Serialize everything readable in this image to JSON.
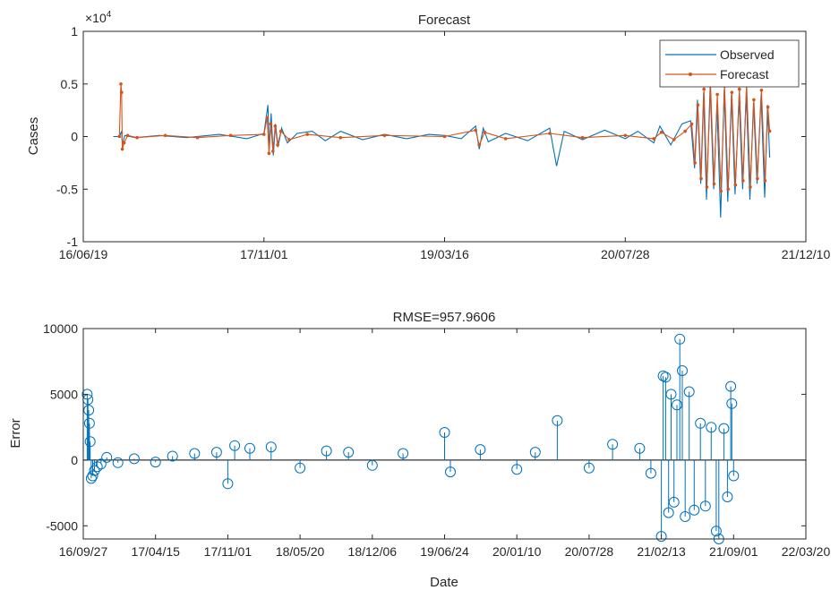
{
  "chart_data": [
    {
      "type": "line",
      "title": "Forecast",
      "xlabel": "",
      "ylabel": "Cases",
      "y_exponent_label": "×10",
      "y_exponent": "4",
      "xlim": [
        "2016-06-19",
        "2021-12-10"
      ],
      "ylim": [
        -1,
        1
      ],
      "xticks": [
        "16/06/19",
        "17/11/01",
        "19/03/16",
        "20/07/28",
        "21/12/10"
      ],
      "yticks": [
        "-1",
        "-0.5",
        "0",
        "0.5",
        "1"
      ],
      "grid": false,
      "legend_position": "top-right",
      "series": [
        {
          "name": "Observed",
          "color": "#0072BD",
          "style": "line",
          "points": [
            [
              "2016-09-10",
              0
            ],
            [
              "2016-09-27",
              0
            ],
            [
              "2016-10-03",
              0.05
            ],
            [
              "2016-10-05",
              -0.08
            ],
            [
              "2016-10-12",
              0.01
            ],
            [
              "2016-11-10",
              -0.01
            ],
            [
              "2017-01-15",
              0.01
            ],
            [
              "2017-04-01",
              -0.01
            ],
            [
              "2017-07-01",
              0.02
            ],
            [
              "2017-09-15",
              -0.02
            ],
            [
              "2017-11-01",
              0.03
            ],
            [
              "2017-11-12",
              0.3
            ],
            [
              "2017-11-16",
              -0.12
            ],
            [
              "2017-11-21",
              0.22
            ],
            [
              "2017-11-27",
              -0.18
            ],
            [
              "2017-12-03",
              0.12
            ],
            [
              "2017-12-10",
              -0.1
            ],
            [
              "2017-12-20",
              0.08
            ],
            [
              "2018-01-05",
              -0.06
            ],
            [
              "2018-02-01",
              0.03
            ],
            [
              "2018-03-15",
              0.05
            ],
            [
              "2018-04-20",
              -0.04
            ],
            [
              "2018-06-01",
              0.05
            ],
            [
              "2018-08-01",
              -0.03
            ],
            [
              "2018-10-01",
              0.02
            ],
            [
              "2018-12-01",
              -0.02
            ],
            [
              "2019-02-01",
              0.02
            ],
            [
              "2019-03-16",
              0.01
            ],
            [
              "2019-05-01",
              -0.02
            ],
            [
              "2019-06-10",
              0.1
            ],
            [
              "2019-06-20",
              -0.12
            ],
            [
              "2019-07-01",
              0.08
            ],
            [
              "2019-07-15",
              -0.05
            ],
            [
              "2019-09-01",
              0.03
            ],
            [
              "2019-11-01",
              -0.04
            ],
            [
              "2020-01-01",
              0.08
            ],
            [
              "2020-01-20",
              -0.28
            ],
            [
              "2020-02-10",
              0.05
            ],
            [
              "2020-04-01",
              -0.03
            ],
            [
              "2020-06-01",
              0.06
            ],
            [
              "2020-07-28",
              -0.02
            ],
            [
              "2020-09-01",
              0.05
            ],
            [
              "2020-10-15",
              -0.06
            ],
            [
              "2020-11-01",
              0.1
            ],
            [
              "2020-12-01",
              -0.08
            ],
            [
              "2021-01-01",
              0.12
            ],
            [
              "2021-01-25",
              0.15
            ],
            [
              "2021-02-05",
              -0.3
            ],
            [
              "2021-02-13",
              0.35
            ],
            [
              "2021-02-22",
              -0.45
            ],
            [
              "2021-03-02",
              0.42
            ],
            [
              "2021-03-10",
              -0.6
            ],
            [
              "2021-03-20",
              0.48
            ],
            [
              "2021-03-30",
              -0.5
            ],
            [
              "2021-04-08",
              0.3
            ],
            [
              "2021-04-18",
              -0.77
            ],
            [
              "2021-04-28",
              0.45
            ],
            [
              "2021-05-08",
              -0.62
            ],
            [
              "2021-05-18",
              0.4
            ],
            [
              "2021-05-28",
              -0.55
            ],
            [
              "2021-06-08",
              0.38
            ],
            [
              "2021-06-18",
              -0.5
            ],
            [
              "2021-06-28",
              0.42
            ],
            [
              "2021-07-08",
              -0.6
            ],
            [
              "2021-07-18",
              0.32
            ],
            [
              "2021-07-28",
              -0.45
            ],
            [
              "2021-08-08",
              0.4
            ],
            [
              "2021-08-18",
              -0.58
            ],
            [
              "2021-08-26",
              0.3
            ],
            [
              "2021-09-01",
              -0.2
            ]
          ]
        },
        {
          "name": "Forecast",
          "color": "#D95319",
          "style": "line-dot",
          "points": [
            [
              "2016-09-27",
              0
            ],
            [
              "2016-10-01",
              0.5
            ],
            [
              "2016-10-03",
              0.42
            ],
            [
              "2016-10-05",
              -0.12
            ],
            [
              "2016-10-10",
              -0.06
            ],
            [
              "2016-10-20",
              0.01
            ],
            [
              "2016-11-15",
              -0.01
            ],
            [
              "2017-02-01",
              0.01
            ],
            [
              "2017-05-01",
              -0.01
            ],
            [
              "2017-08-01",
              0.01
            ],
            [
              "2017-11-01",
              0.02
            ],
            [
              "2017-11-10",
              0.18
            ],
            [
              "2017-11-15",
              -0.16
            ],
            [
              "2017-11-20",
              0.12
            ],
            [
              "2017-11-26",
              -0.14
            ],
            [
              "2017-12-02",
              0.1
            ],
            [
              "2017-12-09",
              -0.08
            ],
            [
              "2017-12-18",
              0.05
            ],
            [
              "2018-01-10",
              -0.03
            ],
            [
              "2018-03-01",
              0.02
            ],
            [
              "2018-06-01",
              -0.01
            ],
            [
              "2018-10-01",
              0.01
            ],
            [
              "2019-03-16",
              0
            ],
            [
              "2019-06-10",
              0.06
            ],
            [
              "2019-06-20",
              -0.08
            ],
            [
              "2019-07-05",
              0.04
            ],
            [
              "2019-09-01",
              -0.02
            ],
            [
              "2020-01-01",
              0.03
            ],
            [
              "2020-04-01",
              -0.01
            ],
            [
              "2020-07-28",
              0.01
            ],
            [
              "2020-10-15",
              -0.02
            ],
            [
              "2020-11-05",
              0.04
            ],
            [
              "2020-12-10",
              -0.03
            ],
            [
              "2021-01-10",
              0.05
            ],
            [
              "2021-01-28",
              0.12
            ],
            [
              "2021-02-06",
              -0.25
            ],
            [
              "2021-02-14",
              0.3
            ],
            [
              "2021-02-23",
              -0.4
            ],
            [
              "2021-03-03",
              0.45
            ],
            [
              "2021-03-11",
              -0.48
            ],
            [
              "2021-03-21",
              0.5
            ],
            [
              "2021-03-31",
              -0.45
            ],
            [
              "2021-04-09",
              0.4
            ],
            [
              "2021-04-19",
              -0.52
            ],
            [
              "2021-04-29",
              0.48
            ],
            [
              "2021-05-09",
              -0.5
            ],
            [
              "2021-05-19",
              0.42
            ],
            [
              "2021-05-29",
              -0.46
            ],
            [
              "2021-06-09",
              0.45
            ],
            [
              "2021-06-19",
              -0.42
            ],
            [
              "2021-06-29",
              0.5
            ],
            [
              "2021-07-09",
              -0.48
            ],
            [
              "2021-07-19",
              0.35
            ],
            [
              "2021-07-29",
              -0.4
            ],
            [
              "2021-08-09",
              0.44
            ],
            [
              "2021-08-19",
              -0.42
            ],
            [
              "2021-08-27",
              0.28
            ],
            [
              "2021-09-01",
              0.05
            ]
          ]
        }
      ]
    },
    {
      "type": "scatter",
      "title": "RMSE=957.9606",
      "xlabel": "Date",
      "ylabel": "Error",
      "xlim": [
        "2016-09-27",
        "2022-03-20"
      ],
      "ylim": [
        -6000,
        10000
      ],
      "xticks": [
        "16/09/27",
        "17/04/15",
        "17/11/01",
        "18/05/20",
        "18/12/06",
        "19/06/24",
        "20/01/10",
        "20/07/28",
        "21/02/13",
        "21/09/01",
        "22/03/20"
      ],
      "yticks": [
        "-5000",
        "0",
        "5000",
        "10000"
      ],
      "grid": false,
      "zero_line": true,
      "series": [
        {
          "name": "",
          "color": "#0072BD",
          "style": "stem-circle",
          "points": [
            [
              "2016-10-08",
              5000
            ],
            [
              "2016-10-10",
              4600
            ],
            [
              "2016-10-12",
              3800
            ],
            [
              "2016-10-14",
              2800
            ],
            [
              "2016-10-16",
              1400
            ],
            [
              "2016-10-19",
              -1400
            ],
            [
              "2016-10-23",
              -1200
            ],
            [
              "2016-10-28",
              -800
            ],
            [
              "2016-11-05",
              -500
            ],
            [
              "2016-11-15",
              -300
            ],
            [
              "2016-12-01",
              200
            ],
            [
              "2017-01-01",
              -200
            ],
            [
              "2017-02-15",
              100
            ],
            [
              "2017-04-15",
              -150
            ],
            [
              "2017-06-01",
              300
            ],
            [
              "2017-08-01",
              500
            ],
            [
              "2017-10-01",
              600
            ],
            [
              "2017-11-01",
              -1800
            ],
            [
              "2017-11-20",
              1100
            ],
            [
              "2018-01-01",
              900
            ],
            [
              "2018-03-01",
              1000
            ],
            [
              "2018-05-20",
              -600
            ],
            [
              "2018-08-01",
              700
            ],
            [
              "2018-10-01",
              600
            ],
            [
              "2018-12-06",
              -400
            ],
            [
              "2019-03-01",
              500
            ],
            [
              "2019-06-24",
              2100
            ],
            [
              "2019-07-10",
              -900
            ],
            [
              "2019-10-01",
              800
            ],
            [
              "2020-01-10",
              -700
            ],
            [
              "2020-03-01",
              600
            ],
            [
              "2020-05-01",
              3000
            ],
            [
              "2020-07-28",
              -600
            ],
            [
              "2020-10-01",
              1200
            ],
            [
              "2020-12-15",
              900
            ],
            [
              "2021-01-15",
              -1000
            ],
            [
              "2021-02-13",
              -5800
            ],
            [
              "2021-02-18",
              6400
            ],
            [
              "2021-02-25",
              6300
            ],
            [
              "2021-03-05",
              -4000
            ],
            [
              "2021-03-12",
              5000
            ],
            [
              "2021-03-20",
              -3200
            ],
            [
              "2021-03-28",
              4200
            ],
            [
              "2021-04-05",
              9200
            ],
            [
              "2021-04-12",
              6800
            ],
            [
              "2021-04-20",
              -4300
            ],
            [
              "2021-05-01",
              5200
            ],
            [
              "2021-05-15",
              -3800
            ],
            [
              "2021-06-01",
              2800
            ],
            [
              "2021-06-15",
              -3500
            ],
            [
              "2021-07-01",
              2500
            ],
            [
              "2021-07-15",
              -5400
            ],
            [
              "2021-07-22",
              -6000
            ],
            [
              "2021-08-05",
              2400
            ],
            [
              "2021-08-15",
              -2800
            ],
            [
              "2021-08-24",
              5600
            ],
            [
              "2021-08-27",
              4300
            ],
            [
              "2021-09-01",
              -1200
            ]
          ]
        }
      ]
    }
  ]
}
